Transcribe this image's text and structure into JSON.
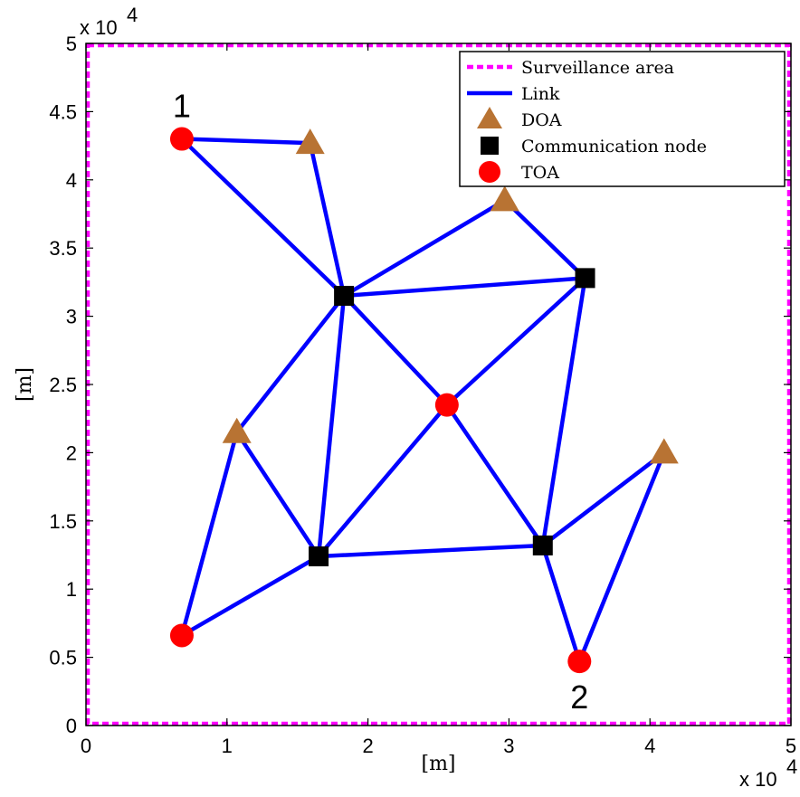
{
  "chart_data": {
    "type": "scatter",
    "xlabel": "[m]",
    "ylabel": "[m]",
    "xlim": [
      0,
      50000
    ],
    "ylim": [
      0,
      50000
    ],
    "x_multiplier": "x 10",
    "x_multiplier_exp": "4",
    "y_multiplier": "x 10",
    "y_multiplier_exp": "4",
    "x_ticks": [
      0,
      10000,
      20000,
      30000,
      40000,
      50000
    ],
    "x_tick_labels": [
      "0",
      "1",
      "2",
      "3",
      "4",
      "5"
    ],
    "y_ticks": [
      0,
      5000,
      10000,
      15000,
      20000,
      25000,
      30000,
      35000,
      40000,
      45000,
      50000
    ],
    "y_tick_labels": [
      "0",
      "0.5",
      "1",
      "1.5",
      "2",
      "2.5",
      "3",
      "3.5",
      "4",
      "4.5",
      "5"
    ],
    "grid": false,
    "legend_position": "top-right",
    "legend": [
      {
        "label": "Surveillance area",
        "symbol": "dashed-line",
        "color": "#ff00ff"
      },
      {
        "label": "Link",
        "symbol": "line",
        "color": "#0000ff"
      },
      {
        "label": "DOA",
        "symbol": "triangle",
        "color": "#b87333"
      },
      {
        "label": "Communication node",
        "symbol": "square",
        "color": "#000000"
      },
      {
        "label": "TOA",
        "symbol": "circle",
        "color": "#ff0000"
      }
    ],
    "surveillance_area": {
      "x": [
        0,
        50000
      ],
      "y": [
        0,
        50000
      ],
      "color": "#ff00ff"
    },
    "nodes": [
      {
        "id": "T1",
        "type": "TOA",
        "x": 6800,
        "y": 43000
      },
      {
        "id": "T2",
        "type": "TOA",
        "x": 25600,
        "y": 23500
      },
      {
        "id": "T3",
        "type": "TOA",
        "x": 6800,
        "y": 6600
      },
      {
        "id": "T4",
        "type": "TOA",
        "x": 35000,
        "y": 4700
      },
      {
        "id": "D1",
        "type": "DOA",
        "x": 15900,
        "y": 42700
      },
      {
        "id": "D2",
        "type": "DOA",
        "x": 29700,
        "y": 38500
      },
      {
        "id": "D3",
        "type": "DOA",
        "x": 10700,
        "y": 21500
      },
      {
        "id": "D4",
        "type": "DOA",
        "x": 41000,
        "y": 20000
      },
      {
        "id": "C1",
        "type": "Communication node",
        "x": 18300,
        "y": 31500
      },
      {
        "id": "C2",
        "type": "Communication node",
        "x": 35400,
        "y": 32800
      },
      {
        "id": "C3",
        "type": "Communication node",
        "x": 16500,
        "y": 12400
      },
      {
        "id": "C4",
        "type": "Communication node",
        "x": 32400,
        "y": 13200
      }
    ],
    "links": [
      [
        "T1",
        "D1"
      ],
      [
        "T1",
        "C1"
      ],
      [
        "D1",
        "C1"
      ],
      [
        "C1",
        "D2"
      ],
      [
        "C1",
        "C2"
      ],
      [
        "D2",
        "C2"
      ],
      [
        "C1",
        "T2"
      ],
      [
        "C1",
        "D3"
      ],
      [
        "C1",
        "C3"
      ],
      [
        "C2",
        "T2"
      ],
      [
        "C2",
        "C4"
      ],
      [
        "D3",
        "C3"
      ],
      [
        "D3",
        "T3"
      ],
      [
        "T3",
        "C3"
      ],
      [
        "C3",
        "T2"
      ],
      [
        "C3",
        "C4"
      ],
      [
        "T2",
        "C4"
      ],
      [
        "C4",
        "D4"
      ],
      [
        "C4",
        "T4"
      ],
      [
        "D4",
        "T4"
      ]
    ],
    "annotations": [
      {
        "text": "1",
        "x": 6800,
        "y": 43000,
        "position": "above"
      },
      {
        "text": "2",
        "x": 35000,
        "y": 4700,
        "position": "below"
      }
    ],
    "colors": {
      "link": "#0000ff",
      "toa": "#ff0000",
      "doa": "#b87333",
      "comm": "#000000",
      "area": "#ff00ff"
    }
  }
}
